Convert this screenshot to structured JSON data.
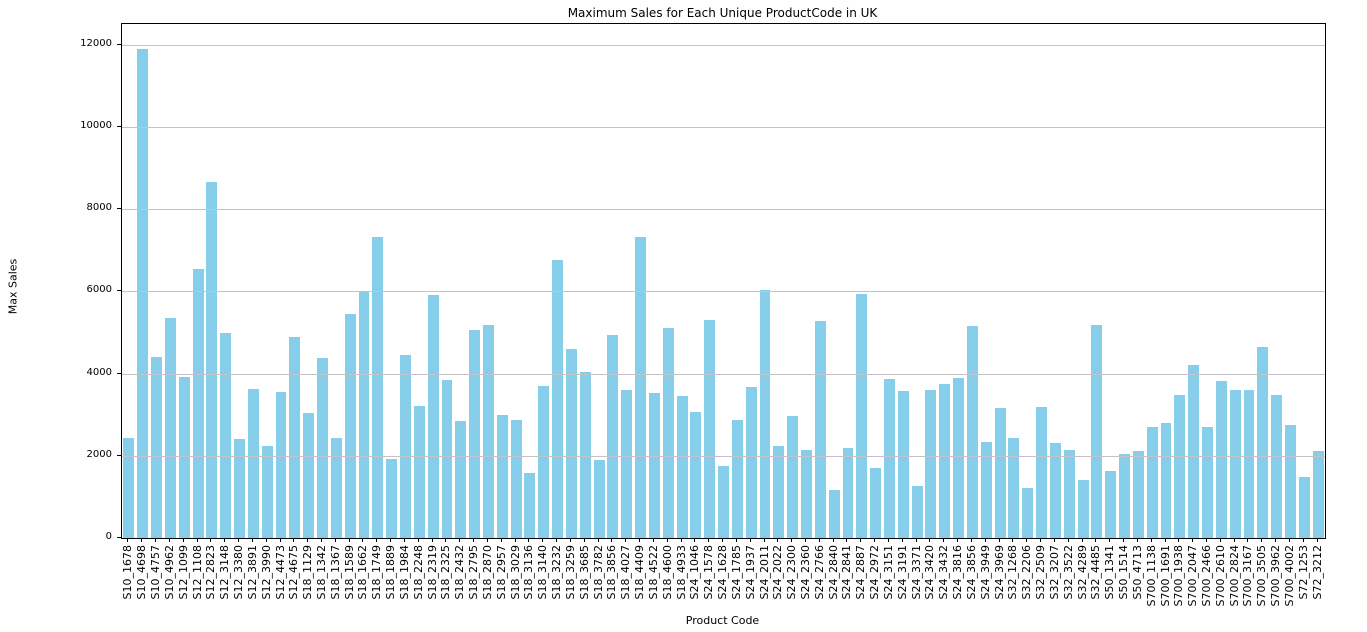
{
  "title": "Maximum Sales for Each Unique ProductCode in UK",
  "chart_data": {
    "type": "bar",
    "title": "Maximum Sales for Each Unique ProductCode in UK",
    "xlabel": "Product Code",
    "ylabel": "Max Sales",
    "ylim": [
      0,
      12500
    ],
    "yticks": [
      0,
      2000,
      4000,
      6000,
      8000,
      10000,
      12000
    ],
    "grid": "horizontal-gridlines-over-bars",
    "legend": "none",
    "bar_color": "#87CEEB",
    "categories": [
      "S10_1678",
      "S10_4698",
      "S10_4757",
      "S10_4962",
      "S12_1099",
      "S12_1108",
      "S12_2823",
      "S12_3148",
      "S12_3380",
      "S12_3891",
      "S12_3990",
      "S12_4473",
      "S12_4675",
      "S18_1129",
      "S18_1342",
      "S18_1367",
      "S18_1589",
      "S18_1662",
      "S18_1749",
      "S18_1889",
      "S18_1984",
      "S18_2248",
      "S18_2319",
      "S18_2325",
      "S18_2432",
      "S18_2795",
      "S18_2870",
      "S18_2957",
      "S18_3029",
      "S18_3136",
      "S18_3140",
      "S18_3232",
      "S18_3259",
      "S18_3685",
      "S18_3782",
      "S18_3856",
      "S18_4027",
      "S18_4409",
      "S18_4522",
      "S18_4600",
      "S18_4933",
      "S24_1046",
      "S24_1578",
      "S24_1628",
      "S24_1785",
      "S24_1937",
      "S24_2011",
      "S24_2022",
      "S24_2300",
      "S24_2360",
      "S24_2766",
      "S24_2840",
      "S24_2841",
      "S24_2887",
      "S24_2972",
      "S24_3151",
      "S24_3191",
      "S24_3371",
      "S24_3420",
      "S24_3432",
      "S24_3816",
      "S24_3856",
      "S24_3949",
      "S24_3969",
      "S32_1268",
      "S32_2206",
      "S32_2509",
      "S32_3207",
      "S32_3522",
      "S32_4289",
      "S32_4485",
      "S50_1341",
      "S50_1514",
      "S50_4713",
      "S700_1138",
      "S700_1691",
      "S700_1938",
      "S700_2047",
      "S700_2466",
      "S700_2610",
      "S700_2824",
      "S700_3167",
      "S700_3505",
      "S700_3962",
      "S700_4002",
      "S72_1253",
      "S72_3212"
    ],
    "values": [
      2440,
      11890,
      4410,
      5350,
      3910,
      6550,
      8660,
      4990,
      2400,
      3620,
      2250,
      3550,
      4900,
      3050,
      4380,
      2440,
      5440,
      5990,
      7320,
      1930,
      4460,
      3220,
      5900,
      3840,
      2840,
      5070,
      5170,
      3000,
      2860,
      1580,
      3700,
      6760,
      4600,
      4040,
      1890,
      4930,
      3590,
      7320,
      3520,
      5120,
      3460,
      3060,
      5300,
      1760,
      2880,
      3670,
      6040,
      2230,
      2960,
      2150,
      5290,
      1160,
      2180,
      5940,
      1710,
      3870,
      3570,
      1270,
      3610,
      3740,
      3890,
      5150,
      2330,
      3170,
      2440,
      1210,
      3180,
      2320,
      2150,
      1420,
      5190,
      1640,
      2040,
      2110,
      2710,
      2790,
      3490,
      4200,
      2700,
      3820,
      3610,
      3610,
      4640,
      3490,
      2750,
      1480,
      2110
    ]
  }
}
